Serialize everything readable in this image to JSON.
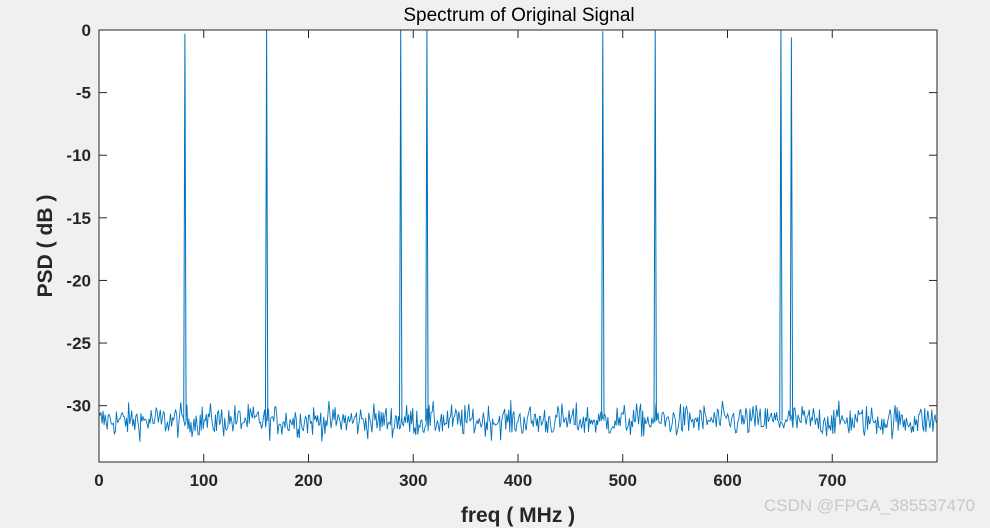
{
  "chart_data": {
    "type": "line",
    "title": "Spectrum of Original Signal",
    "xlabel": "freq ( MHz )",
    "ylabel": "PSD ( dB )",
    "xlim": [
      0,
      800
    ],
    "ylim": [
      -34.5,
      0
    ],
    "xticks": [
      0,
      100,
      200,
      300,
      400,
      500,
      600,
      700
    ],
    "yticks": [
      0,
      -5,
      -10,
      -15,
      -20,
      -25,
      -30
    ],
    "grid": false,
    "series": [
      {
        "color": "#0072bd",
        "noise_floor_db": -31.2,
        "noise_range_db": [
          -33.5,
          -29.2
        ],
        "peaks": [
          {
            "x": 82,
            "y": -0.3
          },
          {
            "x": 160,
            "y": 0.0
          },
          {
            "x": 288,
            "y": 0.0
          },
          {
            "x": 313,
            "y": 0.0
          },
          {
            "x": 481,
            "y": -0.1
          },
          {
            "x": 531,
            "y": 0.0
          },
          {
            "x": 651,
            "y": 0.0
          },
          {
            "x": 661,
            "y": -0.6
          }
        ]
      }
    ]
  },
  "watermark": "CSDN @FPGA_385537470"
}
